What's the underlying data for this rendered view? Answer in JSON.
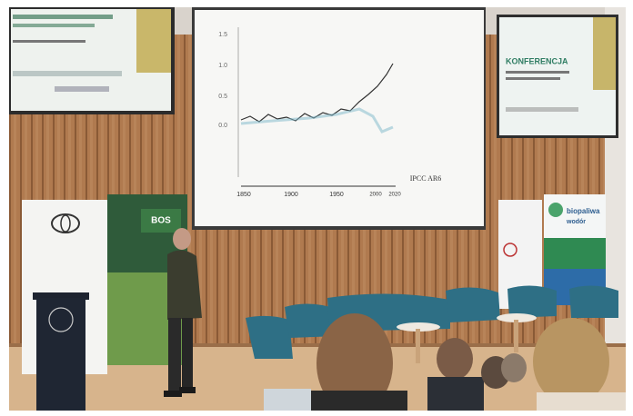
{
  "center_screen": {
    "y_ticks": [
      "1.5",
      "1.0",
      "0.5",
      "0.0"
    ],
    "x_ticks": [
      "1850",
      "1900",
      "1950",
      "2000",
      "2020"
    ],
    "source": "IPCC AR6"
  },
  "right_screen": {
    "title": "KONFERENCJA"
  },
  "banners": {
    "bos": "BOS",
    "biofuels": [
      "biopaliwa",
      "wodór"
    ]
  }
}
